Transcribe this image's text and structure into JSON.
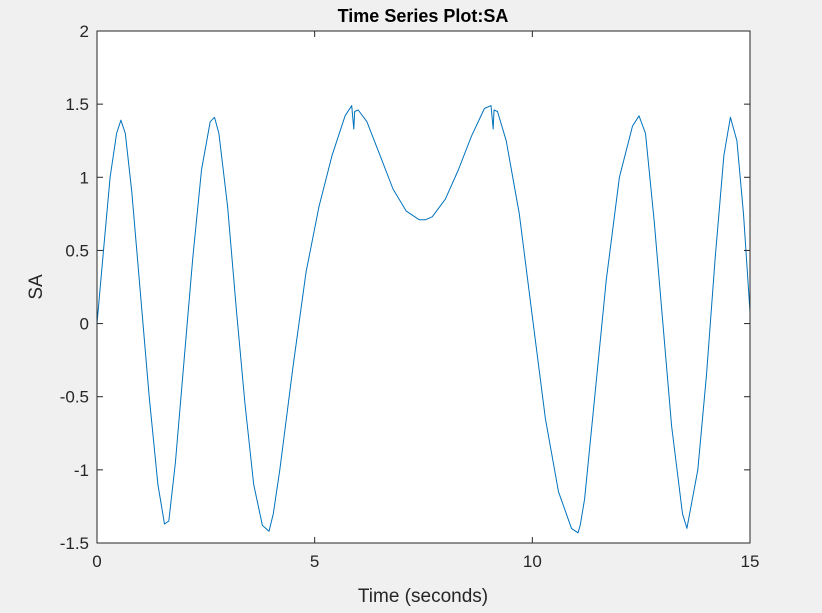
{
  "chart_data": {
    "type": "line",
    "title": "Time Series Plot:SA",
    "xlabel": "Time (seconds)",
    "ylabel": "SA",
    "xlim": [
      0,
      15
    ],
    "ylim": [
      -1.5,
      2
    ],
    "xticks": [
      0,
      5,
      10,
      15
    ],
    "yticks": [
      -1.5,
      -1,
      -0.5,
      0,
      0.5,
      1,
      1.5,
      2
    ],
    "xtick_labels": [
      "0",
      "5",
      "10",
      "15"
    ],
    "ytick_labels": [
      "-1.5",
      "-1",
      "-0.5",
      "0",
      "0.5",
      "1",
      "1.5",
      "2"
    ],
    "grid": false,
    "series": [
      {
        "color": "#0072bd",
        "x": [
          0,
          0.15,
          0.3,
          0.45,
          0.55,
          0.65,
          0.8,
          1.0,
          1.2,
          1.4,
          1.55,
          1.65,
          1.8,
          2.0,
          2.2,
          2.4,
          2.6,
          2.7,
          2.8,
          3.0,
          3.2,
          3.4,
          3.6,
          3.8,
          3.95,
          4.05,
          4.2,
          4.5,
          4.8,
          5.1,
          5.4,
          5.7,
          5.85,
          5.9,
          5.92,
          6.0,
          6.2,
          6.5,
          6.8,
          7.1,
          7.4,
          7.55,
          7.7,
          8.0,
          8.3,
          8.6,
          8.9,
          9.05,
          9.1,
          9.12,
          9.2,
          9.4,
          9.7,
          10.0,
          10.3,
          10.6,
          10.9,
          11.05,
          11.1,
          11.2,
          11.4,
          11.7,
          12.0,
          12.3,
          12.45,
          12.6,
          12.8,
          13.0,
          13.2,
          13.45,
          13.55,
          13.8,
          14.0,
          14.2,
          14.4,
          14.55,
          14.7,
          14.85,
          15.0
        ],
        "y": [
          0,
          0.5,
          1.0,
          1.3,
          1.39,
          1.3,
          0.9,
          0.2,
          -0.5,
          -1.1,
          -1.37,
          -1.35,
          -0.95,
          -0.25,
          0.45,
          1.05,
          1.38,
          1.41,
          1.3,
          0.8,
          0.1,
          -0.55,
          -1.1,
          -1.38,
          -1.42,
          -1.3,
          -1.0,
          -0.3,
          0.35,
          0.8,
          1.15,
          1.42,
          1.49,
          1.33,
          1.45,
          1.46,
          1.38,
          1.15,
          0.92,
          0.77,
          0.71,
          0.71,
          0.73,
          0.85,
          1.05,
          1.28,
          1.47,
          1.49,
          1.33,
          1.46,
          1.45,
          1.25,
          0.75,
          0.05,
          -0.65,
          -1.15,
          -1.4,
          -1.43,
          -1.38,
          -1.2,
          -0.6,
          0.3,
          1.0,
          1.35,
          1.42,
          1.3,
          0.7,
          0.0,
          -0.7,
          -1.3,
          -1.4,
          -1.0,
          -0.35,
          0.45,
          1.15,
          1.41,
          1.25,
          0.75,
          0.08
        ]
      }
    ]
  }
}
